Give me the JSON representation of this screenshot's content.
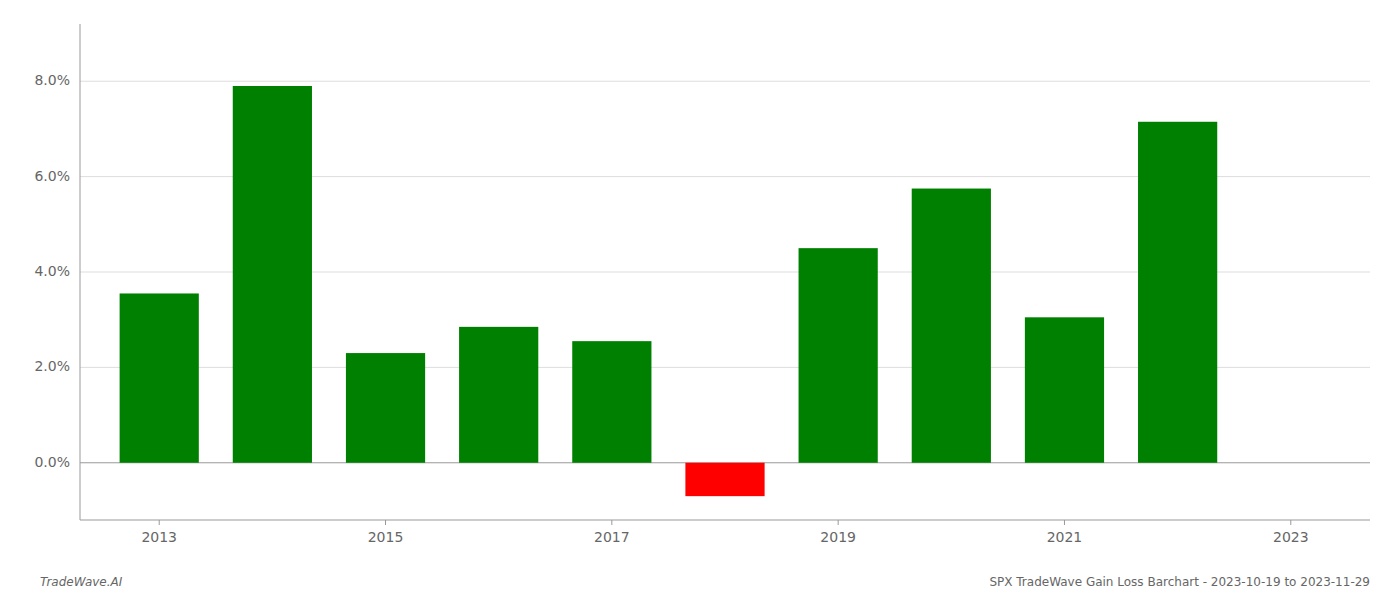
{
  "chart_data": {
    "type": "bar",
    "x": [
      2013,
      2014,
      2015,
      2016,
      2017,
      2018,
      2019,
      2020,
      2021,
      2022
    ],
    "values": [
      0.0355,
      0.079,
      0.023,
      0.0285,
      0.0255,
      -0.007,
      0.045,
      0.0575,
      0.0305,
      0.0715
    ],
    "colors": [
      "#008000",
      "#008000",
      "#008000",
      "#008000",
      "#008000",
      "#ff0000",
      "#008000",
      "#008000",
      "#008000",
      "#008000"
    ],
    "xlim": [
      2012.3,
      2023.7
    ],
    "xticks": [
      2013,
      2015,
      2017,
      2019,
      2021,
      2023
    ],
    "ylim": [
      -0.012,
      0.092
    ],
    "yticks": [
      {
        "value": 0.0,
        "label": "0.0%"
      },
      {
        "value": 0.02,
        "label": "2.0%"
      },
      {
        "value": 0.04,
        "label": "4.0%"
      },
      {
        "value": 0.06,
        "label": "6.0%"
      },
      {
        "value": 0.08,
        "label": "8.0%"
      }
    ],
    "grid": true,
    "annotations": [
      "TradeWave.AI",
      "SPX TradeWave Gain Loss Barchart - 2023-10-19 to 2023-11-29"
    ]
  }
}
